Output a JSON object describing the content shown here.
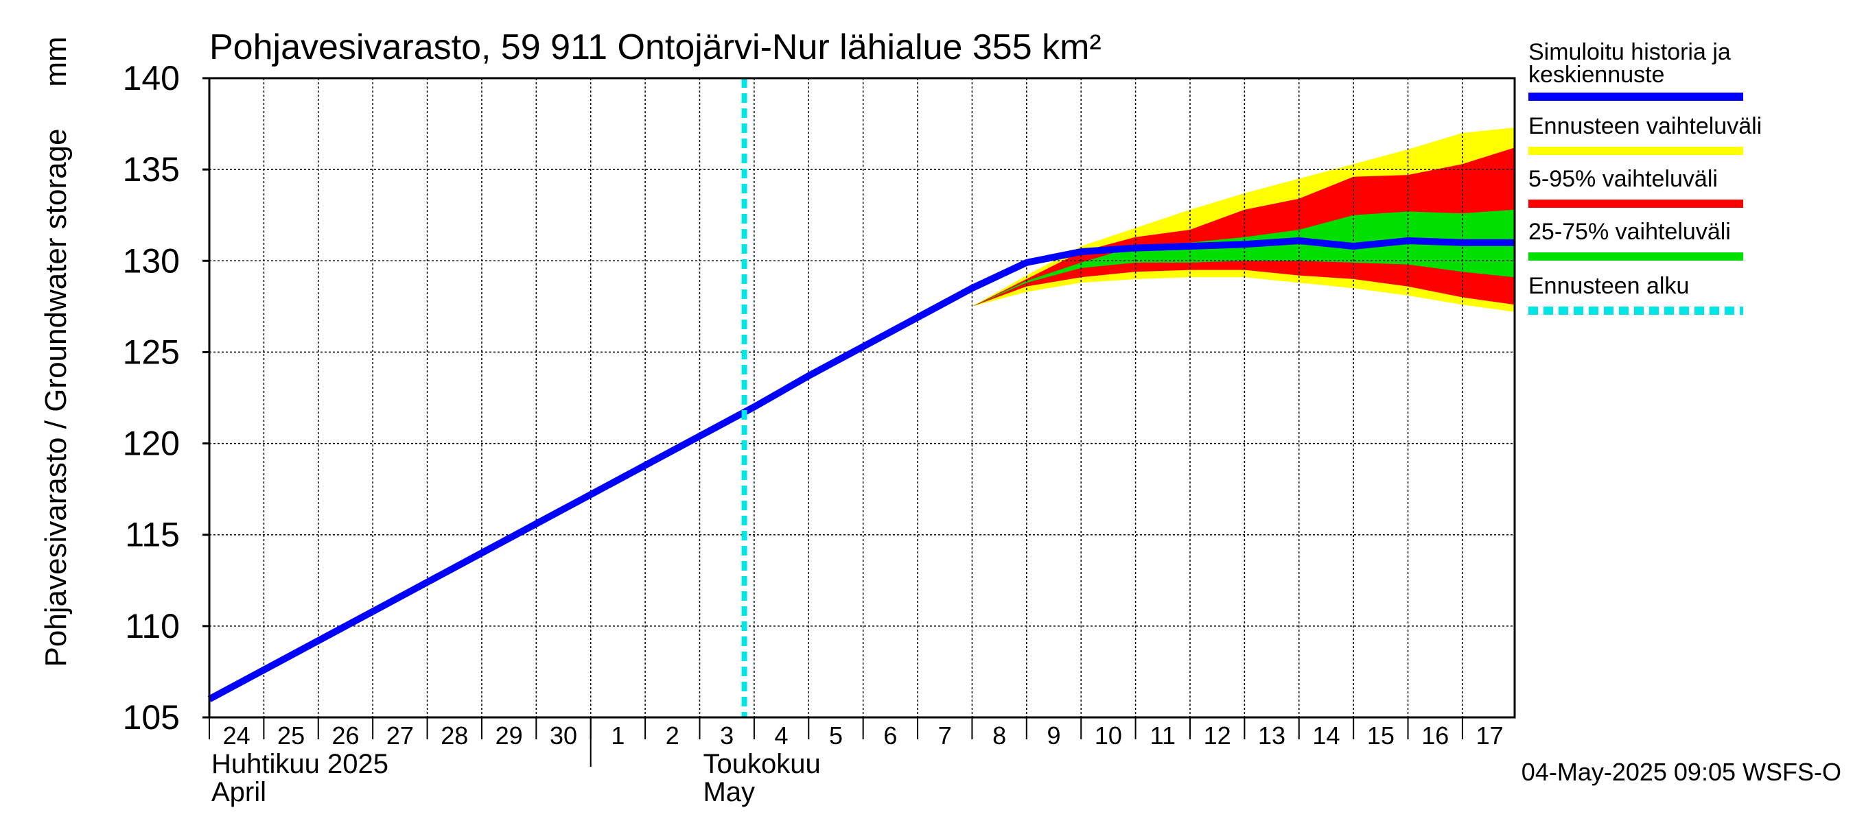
{
  "chart_data": {
    "type": "area",
    "title": "Pohjavesivarasto, 59 911 Ontojärvi-Nur lähialue 355 km²",
    "ylabel": "Pohjavesivarasto / Groundwater storage",
    "yunit": "mm",
    "ylim": [
      105,
      140
    ],
    "yticks": [
      105,
      110,
      115,
      120,
      125,
      130,
      135,
      140
    ],
    "xlim": [
      "2025-04-24",
      "2025-05-17T23:00"
    ],
    "x_day_labels": [
      "24",
      "25",
      "26",
      "27",
      "28",
      "29",
      "30",
      "1",
      "2",
      "3",
      "4",
      "5",
      "6",
      "7",
      "8",
      "9",
      "10",
      "11",
      "12",
      "13",
      "14",
      "15",
      "16",
      "17"
    ],
    "month_labels": [
      {
        "fi": "Huhtikuu  2025",
        "en": "April",
        "start": "2025-04-24"
      },
      {
        "fi": "Toukokuu",
        "en": "May",
        "start": "2025-05-01"
      }
    ],
    "grid": true,
    "legend_position": "right",
    "forecast_start": "2025-05-04",
    "colors": {
      "history": "#0000ff",
      "range_full": "#ffff00",
      "range_5_95": "#ff0000",
      "range_25_75": "#00e000",
      "forecast_start": "#00e5e5"
    },
    "series": [
      {
        "name": "Simuloitu historia ja keskiennuste",
        "x": [
          "2025-04-24",
          "2025-04-25",
          "2025-04-26",
          "2025-04-27",
          "2025-04-28",
          "2025-04-29",
          "2025-04-30",
          "2025-05-01",
          "2025-05-02",
          "2025-05-03",
          "2025-05-04",
          "2025-05-05",
          "2025-05-06",
          "2025-05-07",
          "2025-05-08",
          "2025-05-09",
          "2025-05-10",
          "2025-05-11",
          "2025-05-12",
          "2025-05-13",
          "2025-05-14",
          "2025-05-15",
          "2025-05-16",
          "2025-05-17",
          "2025-05-17T23:00"
        ],
        "values": [
          106.0,
          107.6,
          109.2,
          110.8,
          112.4,
          114.0,
          115.6,
          117.2,
          118.8,
          120.4,
          122.0,
          123.7,
          125.3,
          126.9,
          128.5,
          129.9,
          130.5,
          130.7,
          130.8,
          130.9,
          131.1,
          130.8,
          131.1,
          131.0,
          131.0
        ]
      },
      {
        "name": "Ennusteen vaihteluväli",
        "x": [
          "2025-05-08",
          "2025-05-09",
          "2025-05-10",
          "2025-05-11",
          "2025-05-12",
          "2025-05-13",
          "2025-05-14",
          "2025-05-15",
          "2025-05-16",
          "2025-05-17",
          "2025-05-17T23:00"
        ],
        "low": [
          127.5,
          128.3,
          128.8,
          129.0,
          129.1,
          129.1,
          128.8,
          128.5,
          128.1,
          127.6,
          127.2
        ],
        "high": [
          127.5,
          129.2,
          130.8,
          131.8,
          132.8,
          133.7,
          134.5,
          135.3,
          136.1,
          137.0,
          137.3
        ]
      },
      {
        "name": "5-95% vaihteluväli",
        "x": [
          "2025-05-08",
          "2025-05-09",
          "2025-05-10",
          "2025-05-11",
          "2025-05-12",
          "2025-05-13",
          "2025-05-14",
          "2025-05-15",
          "2025-05-16",
          "2025-05-17",
          "2025-05-17T23:00"
        ],
        "low": [
          127.5,
          128.6,
          129.1,
          129.4,
          129.5,
          129.5,
          129.2,
          129.0,
          128.6,
          128.0,
          127.6
        ],
        "high": [
          127.5,
          129.0,
          130.5,
          131.3,
          131.7,
          132.8,
          133.4,
          134.6,
          134.7,
          135.3,
          136.2
        ]
      },
      {
        "name": "25-75% vaihteluväli",
        "x": [
          "2025-05-08",
          "2025-05-09",
          "2025-05-10",
          "2025-05-11",
          "2025-05-12",
          "2025-05-13",
          "2025-05-14",
          "2025-05-15",
          "2025-05-16",
          "2025-05-17",
          "2025-05-17T23:00"
        ],
        "low": [
          127.5,
          128.8,
          129.6,
          129.9,
          129.9,
          130.0,
          130.0,
          129.9,
          129.8,
          129.4,
          129.1
        ],
        "high": [
          127.5,
          128.9,
          129.9,
          130.8,
          131.0,
          131.3,
          131.7,
          132.5,
          132.7,
          132.6,
          132.8
        ]
      },
      {
        "name": "Ennusteen alku",
        "x": [
          "2025-05-04"
        ]
      }
    ],
    "timestamp": "04-May-2025 09:05 WSFS-O"
  }
}
